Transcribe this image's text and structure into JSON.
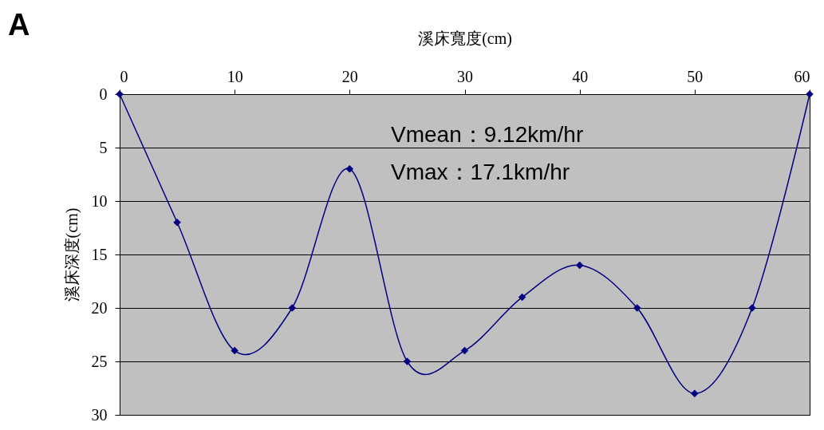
{
  "chart_data": {
    "type": "line",
    "title": "A",
    "xlabel": "溪床寬度(cm)",
    "ylabel": "溪床深度(cm)",
    "x": [
      0,
      5,
      10,
      15,
      20,
      25,
      30,
      35,
      40,
      45,
      50,
      55,
      60
    ],
    "series": [
      {
        "color": "#000080",
        "values": [
          0,
          12,
          24,
          20,
          7,
          25,
          24,
          19,
          16,
          20,
          28,
          20,
          0
        ]
      }
    ],
    "xlim": [
      0,
      60
    ],
    "xticks": [
      0,
      10,
      20,
      30,
      40,
      50,
      60
    ],
    "ylim": [
      30,
      0
    ],
    "yticks": [
      0,
      5,
      10,
      15,
      20,
      25,
      30
    ],
    "grid": "y",
    "marker": "diamond",
    "line_style": "solid",
    "annotations": [
      "Vmean：9.12km/hr",
      "Vmax：17.1km/hr"
    ]
  }
}
